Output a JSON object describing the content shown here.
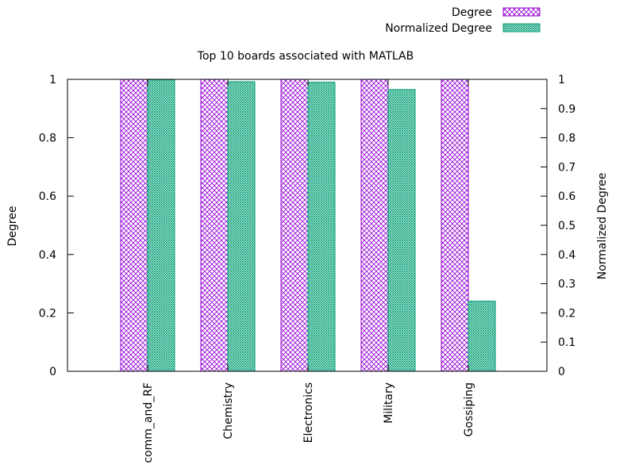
{
  "chart_data": {
    "type": "bar",
    "title": "Top 10 boards associated with MATLAB",
    "categories": [
      "comm_and_RF",
      "Chemistry",
      "Electronics",
      "Military",
      "Gossiping"
    ],
    "series": [
      {
        "name": "Degree",
        "axis": "left",
        "values": [
          1,
          1,
          1,
          1,
          1
        ]
      },
      {
        "name": "Normalized Degree",
        "axis": "right",
        "values": [
          0.999,
          0.992,
          0.99,
          0.965,
          0.24
        ]
      }
    ],
    "ylabel": "Degree",
    "y2label": "Normalized Degree",
    "ylim": [
      0,
      1
    ],
    "y2lim": [
      0,
      1
    ],
    "yticks": [
      "0",
      "0.2",
      "0.4",
      "0.6",
      "0.8",
      "1"
    ],
    "y2ticks": [
      "0",
      "0.1",
      "0.2",
      "0.3",
      "0.4",
      "0.5",
      "0.6",
      "0.7",
      "0.8",
      "0.9",
      "1"
    ],
    "grid": false,
    "legend_position": "top-right",
    "colors": {
      "Degree": "#9400d3",
      "Normalized Degree": "#009e73"
    }
  }
}
